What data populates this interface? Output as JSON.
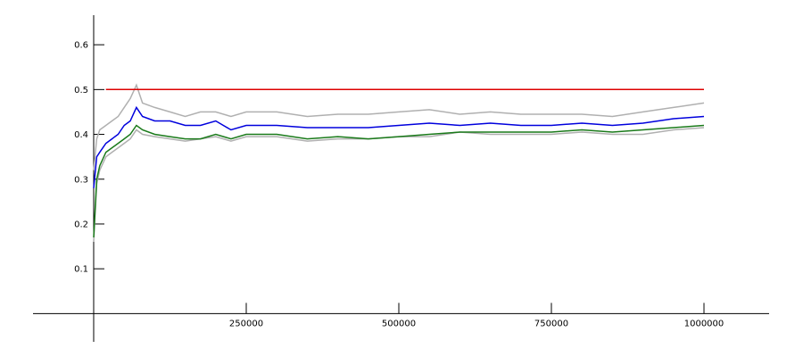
{
  "chart_data": {
    "type": "line",
    "x": [
      0,
      5000,
      10000,
      20000,
      30000,
      40000,
      50000,
      60000,
      70000,
      80000,
      100000,
      125000,
      150000,
      175000,
      200000,
      225000,
      250000,
      300000,
      350000,
      400000,
      450000,
      500000,
      550000,
      600000,
      650000,
      700000,
      750000,
      800000,
      850000,
      900000,
      950000,
      1000000
    ],
    "series": [
      {
        "color": "#b0b0b0",
        "values": [
          0.32,
          0.39,
          0.41,
          0.42,
          0.43,
          0.44,
          0.46,
          0.48,
          0.51,
          0.47,
          0.46,
          0.45,
          0.44,
          0.45,
          0.45,
          0.44,
          0.45,
          0.45,
          0.44,
          0.445,
          0.445,
          0.45,
          0.455,
          0.445,
          0.45,
          0.445,
          0.445,
          0.445,
          0.44,
          0.45,
          0.46,
          0.47
        ]
      },
      {
        "color": "#b0b0b0",
        "values": [
          0.16,
          0.29,
          0.32,
          0.35,
          0.36,
          0.37,
          0.38,
          0.39,
          0.41,
          0.4,
          0.395,
          0.39,
          0.385,
          0.39,
          0.395,
          0.385,
          0.395,
          0.395,
          0.385,
          0.39,
          0.39,
          0.395,
          0.395,
          0.405,
          0.4,
          0.4,
          0.4,
          0.405,
          0.4,
          0.4,
          0.41,
          0.415
        ]
      },
      {
        "color": "#0000dd",
        "values": [
          0.28,
          0.35,
          0.36,
          0.38,
          0.39,
          0.4,
          0.42,
          0.43,
          0.46,
          0.44,
          0.43,
          0.43,
          0.42,
          0.42,
          0.43,
          0.41,
          0.42,
          0.42,
          0.415,
          0.415,
          0.415,
          0.42,
          0.425,
          0.42,
          0.425,
          0.42,
          0.42,
          0.425,
          0.42,
          0.425,
          0.435,
          0.44
        ]
      },
      {
        "color": "#1a7a1a",
        "values": [
          0.17,
          0.3,
          0.33,
          0.36,
          0.37,
          0.38,
          0.39,
          0.4,
          0.42,
          0.41,
          0.4,
          0.395,
          0.39,
          0.39,
          0.4,
          0.39,
          0.4,
          0.4,
          0.39,
          0.395,
          0.39,
          0.395,
          0.4,
          0.405,
          0.405,
          0.405,
          0.405,
          0.41,
          0.405,
          0.41,
          0.415,
          0.42
        ]
      },
      {
        "color": "#dd0000",
        "values": [
          null,
          null,
          null,
          0.5,
          0.5,
          0.5,
          0.5,
          0.5,
          0.5,
          0.5,
          0.5,
          0.5,
          0.5,
          0.5,
          0.5,
          0.5,
          0.5,
          0.5,
          0.5,
          0.5,
          0.5,
          0.5,
          0.5,
          0.5,
          0.5,
          0.5,
          0.5,
          0.5,
          0.5,
          0.5,
          0.5,
          0.5
        ]
      }
    ],
    "xlim": [
      -99400,
      1106700
    ],
    "ylim": [
      -0.063,
      0.666
    ],
    "xticks": [
      250000,
      500000,
      750000,
      1000000
    ],
    "yticks": [
      0.1,
      0.2,
      0.3,
      0.4,
      0.5,
      0.6
    ]
  }
}
